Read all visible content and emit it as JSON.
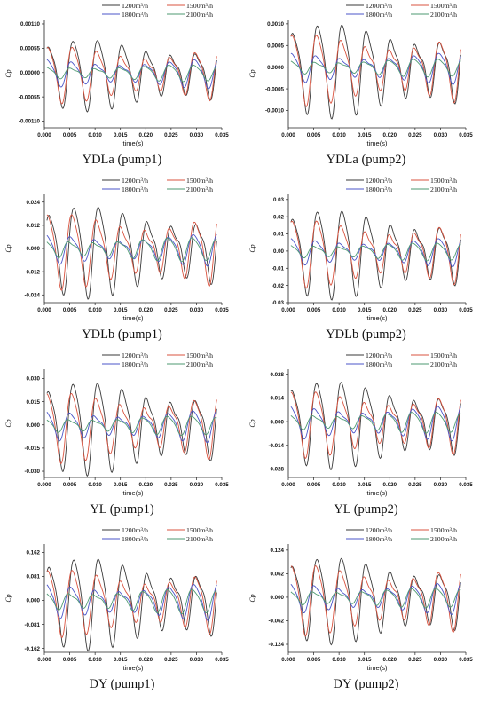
{
  "chart_data": [
    {
      "type": "line",
      "panel": "YDLa (pump1)",
      "title": "YDLa (pump1)",
      "xlabel": "time(s)",
      "ylabel": "Cp",
      "xlim": [
        0,
        0.035
      ],
      "ylim": [
        -0.00125,
        0.0012
      ],
      "xticks": [
        "0.000",
        "0.005",
        "0.010",
        "0.015",
        "0.020",
        "0.025",
        "0.030",
        "0.035"
      ],
      "yticks": [
        0.0011,
        0.00055,
        0,
        -0.00055,
        -0.0011
      ],
      "ytick_labels": [
        "0.00110",
        "0.00055",
        "0.00000",
        "-0.00055",
        "-0.00110"
      ],
      "series": [
        {
          "name": "1200m³/h",
          "color": "#3a3a3a",
          "amp": 0.00078,
          "phase": 0.2
        },
        {
          "name": "1500m³/h",
          "color": "#d9533f",
          "amp": 0.00062,
          "phase": 0.4
        },
        {
          "name": "1800m³/h",
          "color": "#4b55c9",
          "amp": 0.00032,
          "phase": 0.6
        },
        {
          "name": "2100m³/h",
          "color": "#4e9a72",
          "amp": 0.00018,
          "phase": 0.8
        }
      ]
    },
    {
      "type": "line",
      "panel": "YDLa (pump2)",
      "title": "YDLa (pump2)",
      "xlabel": "time(s)",
      "ylabel": "Cp",
      "xlim": [
        0,
        0.035
      ],
      "ylim": [
        -0.0014,
        0.0011
      ],
      "xticks": [
        "0.000",
        "0.005",
        "0.010",
        "0.015",
        "0.020",
        "0.025",
        "0.030",
        "0.035"
      ],
      "yticks": [
        0.001,
        0.0005,
        0,
        -0.0005,
        -0.001
      ],
      "ytick_labels": [
        "0.0010",
        "0.0005",
        "0.0000",
        "-0.0005",
        "-0.0010"
      ],
      "series": [
        {
          "name": "1200m³/h",
          "color": "#3a3a3a",
          "amp": 0.00105,
          "phase": 0.1
        },
        {
          "name": "1500m³/h",
          "color": "#d9533f",
          "amp": 0.0008,
          "phase": 0.3
        },
        {
          "name": "1800m³/h",
          "color": "#4b55c9",
          "amp": 0.00035,
          "phase": 0.5
        },
        {
          "name": "2100m³/h",
          "color": "#4e9a72",
          "amp": 0.0002,
          "phase": 0.7
        }
      ]
    },
    {
      "type": "line",
      "panel": "YDLb (pump1)",
      "title": "YDLb (pump1)",
      "xlabel": "time(s)",
      "ylabel": "Cp",
      "xlim": [
        0,
        0.035
      ],
      "ylim": [
        -0.028,
        0.028
      ],
      "xticks": [
        "0.000",
        "0.005",
        "0.010",
        "0.015",
        "0.020",
        "0.025",
        "0.030",
        "0.035"
      ],
      "yticks": [
        0.024,
        0.012,
        0,
        -0.012,
        -0.024
      ],
      "ytick_labels": [
        "0.024",
        "0.012",
        "0.000",
        "-0.012",
        "-0.024"
      ],
      "series": [
        {
          "name": "1200m³/h",
          "color": "#3a3a3a",
          "amp": 0.023,
          "phase": 0.0
        },
        {
          "name": "1500m³/h",
          "color": "#d9533f",
          "amp": 0.019,
          "phase": 0.5
        },
        {
          "name": "1800m³/h",
          "color": "#4b55c9",
          "amp": 0.008,
          "phase": 0.9
        },
        {
          "name": "2100m³/h",
          "color": "#4e9a72",
          "amp": 0.006,
          "phase": 1.2
        }
      ]
    },
    {
      "type": "line",
      "panel": "YDLb (pump2)",
      "title": "YDLb (pump2)",
      "xlabel": "time(s)",
      "ylabel": "Cp",
      "xlim": [
        0,
        0.035
      ],
      "ylim": [
        -0.03,
        0.033
      ],
      "xticks": [
        "0.000",
        "0.005",
        "0.010",
        "0.015",
        "0.020",
        "0.025",
        "0.030",
        "0.035"
      ],
      "yticks": [
        0.03,
        0.02,
        0.01,
        0,
        -0.01,
        -0.02,
        -0.03
      ],
      "ytick_labels": [
        "0.03",
        "0.02",
        "0.01",
        "0.00",
        "-0.01",
        "-0.02",
        "-0.03"
      ],
      "series": [
        {
          "name": "1200m³/h",
          "color": "#3a3a3a",
          "amp": 0.025,
          "phase": 0.1
        },
        {
          "name": "1500m³/h",
          "color": "#d9533f",
          "amp": 0.019,
          "phase": 0.3
        },
        {
          "name": "1800m³/h",
          "color": "#4b55c9",
          "amp": 0.008,
          "phase": 0.6
        },
        {
          "name": "2100m³/h",
          "color": "#4e9a72",
          "amp": 0.005,
          "phase": 0.9
        }
      ]
    },
    {
      "type": "line",
      "panel": "YL (pump1)",
      "title": "YL (pump1)",
      "xlabel": "time(s)",
      "ylabel": "Cp",
      "xlim": [
        0,
        0.035
      ],
      "ylim": [
        -0.034,
        0.036
      ],
      "xticks": [
        "0.000",
        "0.005",
        "0.010",
        "0.015",
        "0.020",
        "0.025",
        "0.030",
        "0.035"
      ],
      "yticks": [
        0.03,
        0.015,
        0,
        -0.015,
        -0.03
      ],
      "ytick_labels": [
        "0.030",
        "0.015",
        "0.000",
        "-0.015",
        "-0.030"
      ],
      "series": [
        {
          "name": "1200m³/h",
          "color": "#3a3a3a",
          "amp": 0.029,
          "phase": 0.2
        },
        {
          "name": "1500m³/h",
          "color": "#d9533f",
          "amp": 0.022,
          "phase": 0.6
        },
        {
          "name": "1800m³/h",
          "color": "#4b55c9",
          "amp": 0.01,
          "phase": 1.0
        },
        {
          "name": "2100m³/h",
          "color": "#4e9a72",
          "amp": 0.006,
          "phase": 1.3
        }
      ]
    },
    {
      "type": "line",
      "panel": "YL (pump2)",
      "title": "YL (pump2)",
      "xlabel": "time(s)",
      "ylabel": "Cp",
      "xlim": [
        0,
        0.035
      ],
      "ylim": [
        -0.033,
        0.031
      ],
      "xticks": [
        "0.000",
        "0.005",
        "0.010",
        "0.015",
        "0.020",
        "0.025",
        "0.030",
        "0.035"
      ],
      "yticks": [
        0.028,
        0.014,
        0,
        -0.014,
        -0.028
      ],
      "ytick_labels": [
        "0.028",
        "0.014",
        "0.000",
        "-0.014",
        "-0.028"
      ],
      "series": [
        {
          "name": "1200m³/h",
          "color": "#3a3a3a",
          "amp": 0.025,
          "phase": 0.3
        },
        {
          "name": "1500m³/h",
          "color": "#d9533f",
          "amp": 0.019,
          "phase": 0.5
        },
        {
          "name": "1800m³/h",
          "color": "#4b55c9",
          "amp": 0.01,
          "phase": 0.8
        },
        {
          "name": "2100m³/h",
          "color": "#4e9a72",
          "amp": 0.006,
          "phase": 1.1
        }
      ]
    },
    {
      "type": "line",
      "panel": "DY (pump1)",
      "title": "DY (pump1)",
      "xlabel": "time(s)",
      "ylabel": "Cp",
      "xlim": [
        0,
        0.035
      ],
      "ylim": [
        -0.175,
        0.19
      ],
      "xticks": [
        "0.000",
        "0.005",
        "0.010",
        "0.015",
        "0.020",
        "0.025",
        "0.030",
        "0.035"
      ],
      "yticks": [
        0.162,
        0.081,
        0,
        -0.081,
        -0.162
      ],
      "ytick_labels": [
        "0.162",
        "0.081",
        "0.000",
        "-0.081",
        "-0.162"
      ],
      "series": [
        {
          "name": "1200m³/h",
          "color": "#3a3a3a",
          "amp": 0.15,
          "phase": 0.0
        },
        {
          "name": "1500m³/h",
          "color": "#d9533f",
          "amp": 0.11,
          "phase": 0.4
        },
        {
          "name": "1800m³/h",
          "color": "#4b55c9",
          "amp": 0.06,
          "phase": 0.8
        },
        {
          "name": "2100m³/h",
          "color": "#4e9a72",
          "amp": 0.04,
          "phase": 1.2
        }
      ]
    },
    {
      "type": "line",
      "panel": "DY (pump2)",
      "title": "DY (pump2)",
      "xlabel": "time(s)",
      "ylabel": "Cp",
      "xlim": [
        0,
        0.035
      ],
      "ylim": [
        -0.145,
        0.14
      ],
      "xticks": [
        "0.000",
        "0.005",
        "0.010",
        "0.015",
        "0.020",
        "0.025",
        "0.030",
        "0.035"
      ],
      "yticks": [
        0.124,
        0.062,
        0,
        -0.062,
        -0.124
      ],
      "ytick_labels": [
        "0.124",
        "0.062",
        "0.000",
        "-0.062",
        "-0.124"
      ],
      "series": [
        {
          "name": "1200m³/h",
          "color": "#3a3a3a",
          "amp": 0.11,
          "phase": 0.2
        },
        {
          "name": "1500m³/h",
          "color": "#d9533f",
          "amp": 0.09,
          "phase": 0.5
        },
        {
          "name": "1800m³/h",
          "color": "#4b55c9",
          "amp": 0.04,
          "phase": 0.9
        },
        {
          "name": "2100m³/h",
          "color": "#4e9a72",
          "amp": 0.025,
          "phase": 1.2
        }
      ]
    }
  ]
}
